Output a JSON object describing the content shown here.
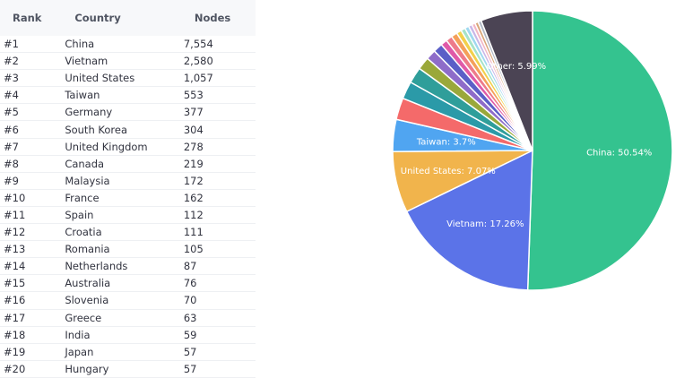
{
  "table": {
    "headers": {
      "rank": "Rank",
      "country": "Country",
      "nodes": "Nodes"
    },
    "rows": [
      {
        "rank": "#1",
        "country": "China",
        "nodes": "7,554"
      },
      {
        "rank": "#2",
        "country": "Vietnam",
        "nodes": "2,580"
      },
      {
        "rank": "#3",
        "country": "United States",
        "nodes": "1,057"
      },
      {
        "rank": "#4",
        "country": "Taiwan",
        "nodes": "553"
      },
      {
        "rank": "#5",
        "country": "Germany",
        "nodes": "377"
      },
      {
        "rank": "#6",
        "country": "South Korea",
        "nodes": "304"
      },
      {
        "rank": "#7",
        "country": "United Kingdom",
        "nodes": "278"
      },
      {
        "rank": "#8",
        "country": "Canada",
        "nodes": "219"
      },
      {
        "rank": "#9",
        "country": "Malaysia",
        "nodes": "172"
      },
      {
        "rank": "#10",
        "country": "France",
        "nodes": "162"
      },
      {
        "rank": "#11",
        "country": "Spain",
        "nodes": "112"
      },
      {
        "rank": "#12",
        "country": "Croatia",
        "nodes": "111"
      },
      {
        "rank": "#13",
        "country": "Romania",
        "nodes": "105"
      },
      {
        "rank": "#14",
        "country": "Netherlands",
        "nodes": "87"
      },
      {
        "rank": "#15",
        "country": "Australia",
        "nodes": "76"
      },
      {
        "rank": "#16",
        "country": "Slovenia",
        "nodes": "70"
      },
      {
        "rank": "#17",
        "country": "Greece",
        "nodes": "63"
      },
      {
        "rank": "#18",
        "country": "India",
        "nodes": "59"
      },
      {
        "rank": "#19",
        "country": "Japan",
        "nodes": "57"
      },
      {
        "rank": "#20",
        "country": "Hungary",
        "nodes": "57"
      }
    ]
  },
  "chart_data": {
    "type": "pie",
    "slices": [
      {
        "label": "China: 50.54%",
        "value": 50.54,
        "color": "#34c38f"
      },
      {
        "label": "Vietnam: 17.26%",
        "value": 17.26,
        "color": "#5b73e8"
      },
      {
        "label": "United States: 7.07%",
        "value": 7.07,
        "color": "#f1b44c"
      },
      {
        "label": "Taiwan: 3.7%",
        "value": 3.7,
        "color": "#50a5f1"
      },
      {
        "label": "",
        "value": 2.52,
        "color": "#f46a6a"
      },
      {
        "label": "",
        "value": 2.03,
        "color": "#2b9aa8"
      },
      {
        "label": "",
        "value": 1.86,
        "color": "#2f9e9a"
      },
      {
        "label": "",
        "value": 1.47,
        "color": "#9aa83a"
      },
      {
        "label": "",
        "value": 1.15,
        "color": "#8e6cc9"
      },
      {
        "label": "",
        "value": 1.08,
        "color": "#5b5fc7"
      },
      {
        "label": "",
        "value": 0.75,
        "color": "#e05aa8"
      },
      {
        "label": "",
        "value": 0.74,
        "color": "#ee7b8a"
      },
      {
        "label": "",
        "value": 0.7,
        "color": "#f4a05a"
      },
      {
        "label": "",
        "value": 0.58,
        "color": "#f2d04b"
      },
      {
        "label": "",
        "value": 0.51,
        "color": "#a6e3c8"
      },
      {
        "label": "",
        "value": 0.47,
        "color": "#9fd8f0"
      },
      {
        "label": "",
        "value": 0.42,
        "color": "#c9b6e8"
      },
      {
        "label": "",
        "value": 0.39,
        "color": "#f3b6c5"
      },
      {
        "label": "",
        "value": 0.38,
        "color": "#d9a77a"
      },
      {
        "label": "",
        "value": 0.38,
        "color": "#b0b8c4"
      },
      {
        "label": "Other: 5.99%",
        "value": 5.99,
        "color": "#4b4454"
      }
    ]
  }
}
